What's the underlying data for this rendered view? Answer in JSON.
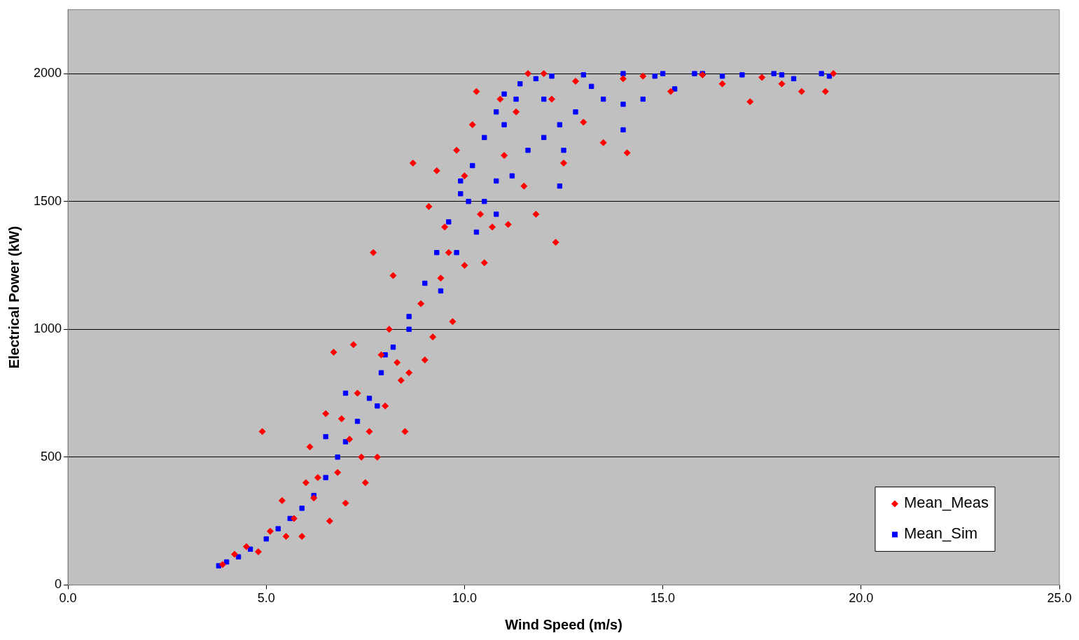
{
  "chart_data": {
    "type": "scatter",
    "xlabel": "Wind Speed (m/s)",
    "ylabel": "Electrical Power (kW)",
    "xlim": [
      0,
      25
    ],
    "xticks": [
      {
        "value": 0,
        "label": "0.0"
      },
      {
        "value": 5,
        "label": "5.0"
      },
      {
        "value": 10,
        "label": "10.0"
      },
      {
        "value": 15,
        "label": "15.0"
      },
      {
        "value": 20,
        "label": "20.0"
      },
      {
        "value": 25,
        "label": "25.0"
      }
    ],
    "ylim": [
      0,
      2250
    ],
    "yticks": [
      0,
      500,
      1000,
      1500,
      2000
    ],
    "grid": "y",
    "legend": "bottom right",
    "series": [
      {
        "name": "Mean_Meas",
        "color": "#ff0000",
        "marker": "diamond",
        "x": [
          3.9,
          4.2,
          4.5,
          4.9,
          4.8,
          5.1,
          5.4,
          5.7,
          5.9,
          6.0,
          6.1,
          6.3,
          6.5,
          6.6,
          6.7,
          6.8,
          7.0,
          7.1,
          7.2,
          7.3,
          7.4,
          7.5,
          7.7,
          7.8,
          7.9,
          8.0,
          8.1,
          8.2,
          8.3,
          8.5,
          8.6,
          8.7,
          8.9,
          9.0,
          9.1,
          9.2,
          9.3,
          9.4,
          9.6,
          9.7,
          9.8,
          10.0,
          10.2,
          10.3,
          10.4,
          10.5,
          10.7,
          11.0,
          11.1,
          11.3,
          11.5,
          11.8,
          12.0,
          12.3,
          12.5,
          12.8,
          13.5,
          14.1,
          14.5,
          15.2,
          16.5,
          17.2,
          18.0,
          18.5,
          19.1,
          19.3,
          17.5,
          13.0,
          11.6,
          10.0,
          6.2,
          5.5,
          6.9,
          7.6,
          8.4,
          9.5,
          10.9,
          12.2,
          14.0,
          16.0
        ],
        "values": [
          80,
          120,
          150,
          600,
          130,
          210,
          330,
          260,
          190,
          400,
          540,
          420,
          670,
          250,
          910,
          440,
          320,
          570,
          940,
          750,
          500,
          400,
          1300,
          500,
          900,
          700,
          1000,
          1210,
          870,
          600,
          830,
          1650,
          1100,
          880,
          1480,
          970,
          1620,
          1200,
          1300,
          1030,
          1700,
          1250,
          1800,
          1930,
          1450,
          1260,
          1400,
          1680,
          1410,
          1850,
          1560,
          1450,
          2000,
          1340,
          1650,
          1970,
          1730,
          1690,
          1990,
          1930,
          1960,
          1890,
          1960,
          1930,
          1930,
          2000,
          1985,
          1810,
          2000,
          1600,
          340,
          190,
          650,
          600,
          800,
          1400,
          1900,
          1900,
          1980,
          1995
        ]
      },
      {
        "name": "Mean_Sim",
        "color": "#0000ff",
        "marker": "square",
        "x": [
          3.8,
          4.0,
          4.3,
          4.6,
          5.0,
          5.3,
          5.6,
          5.9,
          6.2,
          6.5,
          6.8,
          7.0,
          7.3,
          7.6,
          7.9,
          8.2,
          8.6,
          9.0,
          9.3,
          9.6,
          9.9,
          10.2,
          10.5,
          10.8,
          11.0,
          11.4,
          11.8,
          12.2,
          13.0,
          14.0,
          15.0,
          16.0,
          17.0,
          18.0,
          19.2,
          10.5,
          10.8,
          11.2,
          11.6,
          12.0,
          12.4,
          12.8,
          12.4,
          14.0,
          14.0,
          14.5,
          13.5,
          15.3,
          11.0,
          10.3,
          10.8,
          11.3,
          12.5,
          7.0,
          6.5,
          8.6,
          9.4,
          9.8,
          10.1,
          7.8,
          8.0,
          9.9,
          12.0,
          13.2,
          16.5,
          17.8,
          18.3,
          19.0,
          15.8,
          14.8
        ],
        "values": [
          75,
          90,
          110,
          140,
          180,
          220,
          260,
          300,
          350,
          420,
          500,
          560,
          640,
          730,
          830,
          930,
          1050,
          1180,
          1300,
          1420,
          1530,
          1640,
          1750,
          1850,
          1920,
          1960,
          1980,
          1990,
          1995,
          2000,
          2000,
          2000,
          1995,
          1995,
          1990,
          1500,
          1450,
          1600,
          1700,
          1750,
          1800,
          1850,
          1560,
          1780,
          1880,
          1900,
          1900,
          1940,
          1800,
          1380,
          1580,
          1900,
          1700,
          750,
          580,
          1000,
          1150,
          1300,
          1500,
          700,
          900,
          1580,
          1900,
          1950,
          1990,
          2000,
          1980,
          2000,
          2000,
          1990
        ]
      }
    ]
  }
}
